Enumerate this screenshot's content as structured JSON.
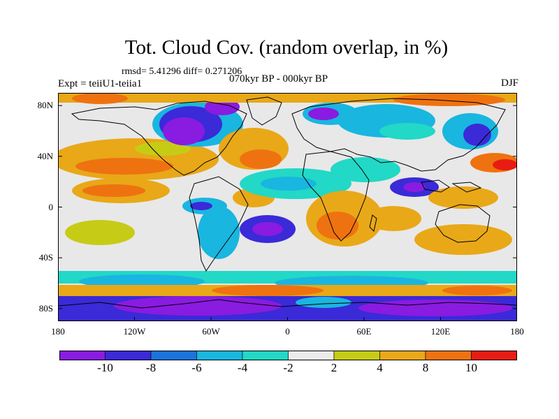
{
  "header": {
    "title": "Tot. Cloud Cov. (random overlap, in %)",
    "stats": "rmsd= 5.41296 diff= 0.271206",
    "expt": "Expt = teiiU1-teiia1",
    "period": "070kyr BP - 000kyr BP",
    "season": "DJF"
  },
  "map": {
    "projection": "cylindrical-equidistant",
    "lon_range": [
      -180,
      180
    ],
    "lat_range": [
      -90,
      90
    ],
    "lat_ticks": [
      {
        "value": 80,
        "label": "80N"
      },
      {
        "value": 40,
        "label": "40N"
      },
      {
        "value": 0,
        "label": "0"
      },
      {
        "value": -40,
        "label": "40S"
      },
      {
        "value": -80,
        "label": "80S"
      }
    ],
    "lon_ticks": [
      {
        "value": -180,
        "label": "180"
      },
      {
        "value": -120,
        "label": "120W"
      },
      {
        "value": -60,
        "label": "60W"
      },
      {
        "value": 0,
        "label": "0"
      },
      {
        "value": 60,
        "label": "60E"
      },
      {
        "value": 120,
        "label": "120E"
      },
      {
        "value": 180,
        "label": "180"
      }
    ]
  },
  "colorbar": {
    "labels": [
      "-10",
      "-8",
      "-6",
      "-4",
      "-2",
      "2",
      "4",
      "8",
      "10"
    ],
    "colors": [
      "#8a1be0",
      "#3a2ad8",
      "#1a74db",
      "#19b6e0",
      "#22d8c6",
      "#ebebeb",
      "#c6cc16",
      "#e8a818",
      "#ef7210",
      "#e81c12"
    ]
  }
}
